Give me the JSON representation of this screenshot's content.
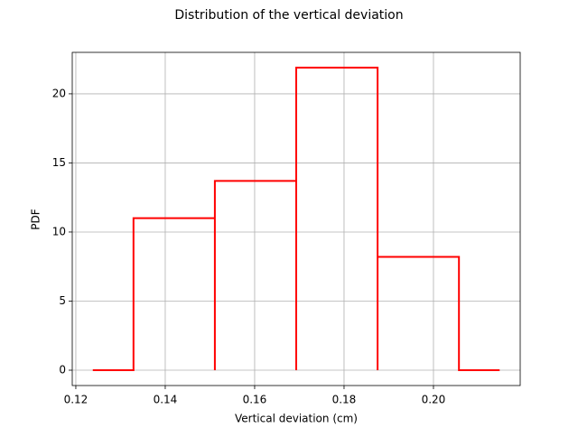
{
  "chart_data": {
    "type": "line",
    "title": "Distribution of the vertical deviation",
    "xlabel": "Vertical deviation (cm)",
    "ylabel": "PDF",
    "x": [
      0.1238,
      0.1329,
      0.1329,
      0.1511,
      0.1511,
      0.1511,
      0.1693,
      0.1693,
      0.1693,
      0.1875,
      0.1875,
      0.1875,
      0.2057,
      0.2057,
      0.2148
    ],
    "series": [
      {
        "color": "#ff0000",
        "values": [
          0,
          0,
          11.0,
          11.0,
          0,
          13.7,
          13.7,
          0,
          21.9,
          21.9,
          0,
          8.2,
          8.2,
          0,
          0
        ]
      }
    ],
    "xlim": [
      0.1192,
      0.2194
    ],
    "ylim": [
      -1.11,
      23.0
    ],
    "xticks": [
      0.12,
      0.14,
      0.16,
      0.18,
      {
        "value": 0.2,
        "label": "0.20"
      }
    ],
    "yticks": [
      0,
      5,
      10,
      15,
      20
    ],
    "grid": true
  }
}
